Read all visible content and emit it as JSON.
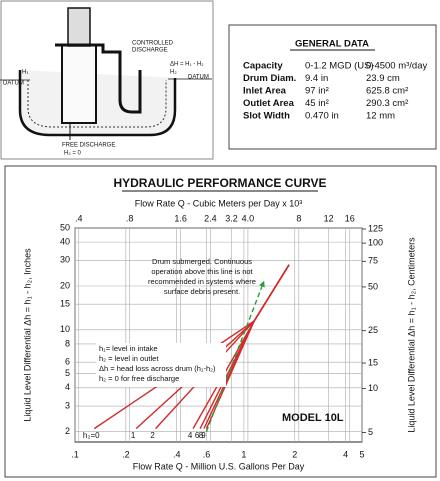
{
  "diagram": {
    "labels": [
      "CONTROLLED",
      "DISCHARGE",
      "ΔH = H₁ - H₂",
      "H₂",
      "DATUM",
      "H₁",
      "DATUM",
      "FREE DISCHARGE",
      "H₂ = 0"
    ]
  },
  "general_data": {
    "title": "GENERAL DATA",
    "rows": [
      [
        "Capacity",
        "0-1.2 MGD (US)",
        "0-4500 m³/day"
      ],
      [
        "Drum Diam.",
        "9.4 in",
        "23.9 cm"
      ],
      [
        "Inlet Area",
        "97 in²",
        "625.8 cm²"
      ],
      [
        "Outlet Area",
        "45 in²",
        "290.3 cm²"
      ],
      [
        "Slot Width",
        "0.470 in",
        "12 mm"
      ]
    ]
  },
  "chart_data": {
    "type": "line",
    "title": "HYDRAULIC PERFORMANCE CURVE",
    "x_label": "Flow Rate Q - Million U.S. Gallons Per Day",
    "x2_label": "Flow Rate Q - Cubic Meters per Day x 10³",
    "y_label": "Liquid Level Differential  Δh = h₁ - h₂, Inches",
    "y2_label": "Liquid Level Differential  Δh = h₁ - h₂, Centimeters",
    "log_x": true,
    "log_y": true,
    "grid": true,
    "xlim": [
      0.1,
      5
    ],
    "xticks": [
      {
        "value": 0.1,
        "label": ".1"
      },
      {
        "value": 0.2,
        "label": ".2"
      },
      {
        "value": 0.4,
        "label": ".4"
      },
      {
        "value": 0.6,
        "label": ".6"
      },
      1,
      2,
      4,
      5
    ],
    "x2lim": [
      0.38,
      18.9
    ],
    "x2ticks": [
      {
        "value": 0.4,
        "label": ".4"
      },
      {
        "value": 0.8,
        "label": ".8"
      },
      1.6,
      2.4,
      3.2,
      {
        "value": 4.0,
        "label": "4.0"
      },
      8,
      12,
      16
    ],
    "ylim": [
      1.7,
      50
    ],
    "yticks": [
      2,
      3,
      4,
      5,
      6,
      8,
      10,
      15,
      20,
      30,
      40,
      50
    ],
    "y2lim": [
      4.3,
      127
    ],
    "y2ticks": [
      5,
      10,
      15,
      25,
      50,
      75,
      100,
      125
    ],
    "series": [
      {
        "name": "h₂=0",
        "color": "#d42a2a",
        "x": [
          0.13,
          1.15,
          1.85
        ],
        "values": [
          2.1,
          11.5,
          28
        ]
      },
      {
        "name": "1",
        "color": "#d42a2a",
        "x": [
          0.23,
          1.15,
          1.85
        ],
        "values": [
          2.1,
          11.5,
          28
        ]
      },
      {
        "name": "2",
        "color": "#d42a2a",
        "x": [
          0.3,
          1.15,
          1.85
        ],
        "values": [
          2.1,
          11.5,
          28
        ]
      },
      {
        "name": "4",
        "color": "#d42a2a",
        "x": [
          0.5,
          1.15,
          1.85
        ],
        "values": [
          2.1,
          11.5,
          28
        ]
      },
      {
        "name": "6",
        "color": "#d42a2a",
        "x": [
          0.55,
          1.15,
          1.85
        ],
        "values": [
          2.1,
          11.5,
          28
        ]
      },
      {
        "name": "8",
        "color": "#d42a2a",
        "x": [
          0.58,
          1.15,
          1.85
        ],
        "values": [
          2.1,
          11.5,
          28
        ]
      },
      {
        "name": "9",
        "color": "#d42a2a",
        "x": [
          0.6,
          1.15,
          1.85
        ],
        "values": [
          2.1,
          11.5,
          28
        ]
      },
      {
        "color": "#2e9a3a",
        "style": "dashed",
        "x": [
          0.6,
          1.31
        ],
        "values": [
          2,
          21.4
        ]
      }
    ],
    "annotation": [
      "Drum submerged.  Continuous",
      "operation above this line is not",
      "recommended in systems where",
      "surface debris present."
    ],
    "key": [
      "h₁= level in intake",
      "h₂ = level in outlet",
      "Δh = head loss across drum (h₁-h₂)",
      "h₂ = 0 for free discharge"
    ],
    "model": "MODEL 10L"
  }
}
